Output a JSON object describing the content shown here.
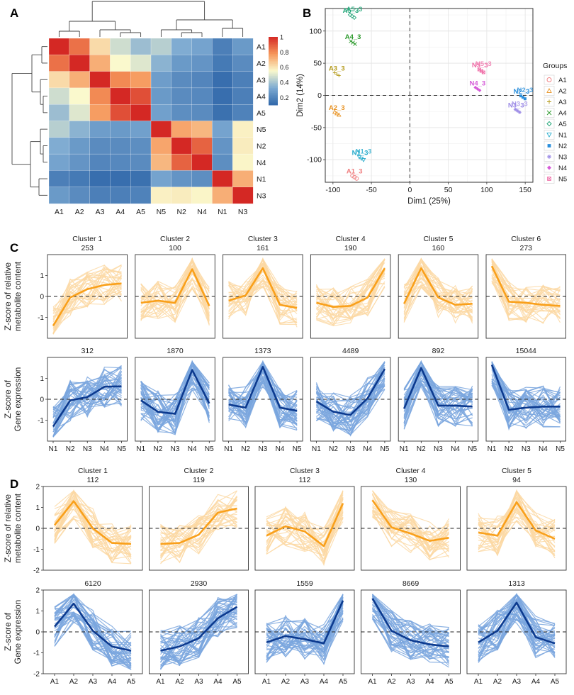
{
  "colors": {
    "orange_band": "#fcd8a3",
    "orange_line": "#f9a01b",
    "blue_band": "#7aa6de",
    "blue_line": "#0c3a8f",
    "grid": "#e6e6e6"
  },
  "panel_labels": [
    "A",
    "B",
    "C",
    "D"
  ],
  "chart_data": [
    {
      "type": "heatmap",
      "panel": "A",
      "rows": [
        "A1",
        "A2",
        "A3",
        "A4",
        "A5",
        "N5",
        "N2",
        "N4",
        "N1",
        "N3"
      ],
      "cols": [
        "A1",
        "A2",
        "A3",
        "A4",
        "A5",
        "N5",
        "N2",
        "N4",
        "N1",
        "N3"
      ],
      "values": [
        [
          1.0,
          0.85,
          0.62,
          0.47,
          0.38,
          0.43,
          0.33,
          0.3,
          0.18,
          0.27
        ],
        [
          0.85,
          1.0,
          0.72,
          0.55,
          0.5,
          0.35,
          0.27,
          0.25,
          0.16,
          0.22
        ],
        [
          0.62,
          0.72,
          1.0,
          0.8,
          0.76,
          0.28,
          0.22,
          0.2,
          0.12,
          0.18
        ],
        [
          0.47,
          0.55,
          0.8,
          1.0,
          0.92,
          0.27,
          0.22,
          0.21,
          0.12,
          0.18
        ],
        [
          0.38,
          0.5,
          0.76,
          0.92,
          1.0,
          0.29,
          0.23,
          0.22,
          0.13,
          0.19
        ],
        [
          0.43,
          0.35,
          0.28,
          0.27,
          0.29,
          1.0,
          0.74,
          0.7,
          0.3,
          0.57
        ],
        [
          0.33,
          0.27,
          0.22,
          0.22,
          0.23,
          0.74,
          1.0,
          0.88,
          0.25,
          0.58
        ],
        [
          0.3,
          0.25,
          0.2,
          0.21,
          0.22,
          0.7,
          0.88,
          1.0,
          0.23,
          0.56
        ],
        [
          0.18,
          0.16,
          0.12,
          0.12,
          0.13,
          0.3,
          0.25,
          0.23,
          1.0,
          0.72
        ],
        [
          0.27,
          0.22,
          0.18,
          0.18,
          0.19,
          0.57,
          0.58,
          0.56,
          0.72,
          1.0
        ]
      ],
      "colorbar": {
        "range": [
          0.1,
          1
        ],
        "ticks": [
          "1",
          "0.8",
          "0.6",
          "0.4",
          "0.2"
        ]
      }
    },
    {
      "type": "scatter",
      "panel": "B",
      "xlabel": "Dim1 (25%)",
      "ylabel": "Dim2 (14%)",
      "xlim": [
        -110,
        160
      ],
      "ylim": [
        -135,
        135
      ],
      "xticks": [
        -100,
        -50,
        0,
        50,
        100,
        150
      ],
      "yticks": [
        -100,
        -50,
        0,
        50,
        100
      ],
      "legend_title": "Groups",
      "groups": [
        {
          "name": "A1",
          "color": "#f07f80",
          "marker": "circle",
          "x": -72,
          "y": -127,
          "label": "A1_3"
        },
        {
          "name": "A2",
          "color": "#e8911f",
          "marker": "triangle",
          "x": -95,
          "y": -28,
          "label": "A2_3"
        },
        {
          "name": "A3",
          "color": "#b49a1a",
          "marker": "plus",
          "x": -95,
          "y": 33,
          "label": "A3_3"
        },
        {
          "name": "A4",
          "color": "#2d9a2d",
          "marker": "cross",
          "x": -74,
          "y": 82,
          "label": "A4_3"
        },
        {
          "name": "A5",
          "color": "#1ba374",
          "marker": "diamond",
          "x": -75,
          "y": 123,
          "label": "A5_3"
        },
        {
          "name": "N1",
          "color": "#22aacb",
          "marker": "invtriangle",
          "x": -63,
          "y": -98,
          "label": "N1_3"
        },
        {
          "name": "N2",
          "color": "#2b8fdc",
          "marker": "square",
          "x": 147,
          "y": -3,
          "label": "N2_3"
        },
        {
          "name": "N3",
          "color": "#9c8be6",
          "marker": "asterisk",
          "x": 140,
          "y": -24,
          "label": "N3_3"
        },
        {
          "name": "N4",
          "color": "#d55ad8",
          "marker": "diamondplus",
          "x": 88,
          "y": 10,
          "label": "N4_3"
        },
        {
          "name": "N5",
          "color": "#ef6fa8",
          "marker": "squarecross",
          "x": 93,
          "y": 38,
          "label": "N5_3"
        }
      ]
    },
    {
      "type": "line",
      "panel": "C",
      "x": [
        "N1",
        "N2",
        "N3",
        "N4",
        "N5"
      ],
      "ylim": [
        -2,
        2
      ],
      "yticks": [
        -1,
        0,
        1
      ],
      "ylabel_top": [
        "Z-score of relative",
        "metabolite content"
      ],
      "ylabel_bottom": [
        "Z-score of",
        "Gene expression"
      ],
      "clusters": [
        {
          "name": "Cluster 1",
          "metabolites": "253",
          "genes": "312",
          "meta_mean": [
            -1.4,
            -0.05,
            0.35,
            0.55,
            0.62
          ],
          "gene_mean": [
            -1.3,
            -0.05,
            0.1,
            0.6,
            0.62
          ]
        },
        {
          "name": "Cluster 2",
          "metabolites": "100",
          "genes": "1870",
          "meta_mean": [
            -0.3,
            -0.2,
            -0.3,
            1.3,
            -0.45
          ],
          "gene_mean": [
            -0.05,
            -0.6,
            -0.7,
            1.4,
            -0.2
          ]
        },
        {
          "name": "Cluster 3",
          "metabolites": "161",
          "genes": "1373",
          "meta_mean": [
            -0.2,
            0.05,
            1.35,
            -0.4,
            -0.55
          ],
          "gene_mean": [
            -0.25,
            -0.4,
            1.55,
            -0.4,
            -0.55
          ]
        },
        {
          "name": "Cluster 4",
          "metabolites": "190",
          "genes": "4489",
          "meta_mean": [
            -0.3,
            -0.5,
            -0.45,
            -0.05,
            1.35
          ],
          "gene_mean": [
            -0.1,
            -0.6,
            -0.75,
            0.05,
            1.45
          ]
        },
        {
          "name": "Cluster 5",
          "metabolites": "160",
          "genes": "892",
          "meta_mean": [
            -0.35,
            1.35,
            -0.05,
            -0.4,
            -0.35
          ],
          "gene_mean": [
            -0.45,
            1.5,
            -0.3,
            -0.3,
            -0.35
          ]
        },
        {
          "name": "Cluster 6",
          "metabolites": "273",
          "genes": "15044",
          "meta_mean": [
            1.45,
            -0.25,
            -0.3,
            -0.4,
            -0.45
          ],
          "gene_mean": [
            1.65,
            -0.5,
            -0.4,
            -0.35,
            -0.35
          ]
        }
      ]
    },
    {
      "type": "line",
      "panel": "D",
      "x": [
        "A1",
        "A2",
        "A3",
        "A4",
        "A5"
      ],
      "ylim": [
        -2,
        2
      ],
      "yticks": [
        -2,
        -1,
        0,
        1,
        2
      ],
      "ylabel_top": [
        "Z-score of relative",
        "metabolite content"
      ],
      "ylabel_bottom": [
        "Z-score of",
        "Gene expression"
      ],
      "clusters": [
        {
          "name": "Cluster 1",
          "metabolites": "112",
          "genes": "6120",
          "meta_mean": [
            0.15,
            1.3,
            0.0,
            -0.7,
            -0.75
          ],
          "gene_mean": [
            0.25,
            1.35,
            0.05,
            -0.7,
            -0.9
          ]
        },
        {
          "name": "Cluster 2",
          "metabolites": "119",
          "genes": "2930",
          "meta_mean": [
            -0.75,
            -0.7,
            -0.3,
            0.75,
            0.95
          ],
          "gene_mean": [
            -0.9,
            -0.7,
            -0.3,
            0.65,
            1.2
          ]
        },
        {
          "name": "Cluster 3",
          "metabolites": "112",
          "genes": "1559",
          "meta_mean": [
            -0.35,
            0.1,
            -0.15,
            -0.85,
            1.2
          ],
          "gene_mean": [
            -0.5,
            -0.2,
            -0.35,
            -0.55,
            1.5
          ]
        },
        {
          "name": "Cluster 4",
          "metabolites": "130",
          "genes": "8669",
          "meta_mean": [
            1.35,
            0.05,
            -0.25,
            -0.6,
            -0.45
          ],
          "gene_mean": [
            1.6,
            0.05,
            -0.4,
            -0.6,
            -0.7
          ]
        },
        {
          "name": "Cluster 5",
          "metabolites": "94",
          "genes": "1313",
          "meta_mean": [
            -0.2,
            -0.35,
            1.25,
            -0.1,
            -0.5
          ],
          "gene_mean": [
            -0.5,
            0.05,
            1.4,
            -0.25,
            -0.55
          ]
        }
      ]
    }
  ]
}
